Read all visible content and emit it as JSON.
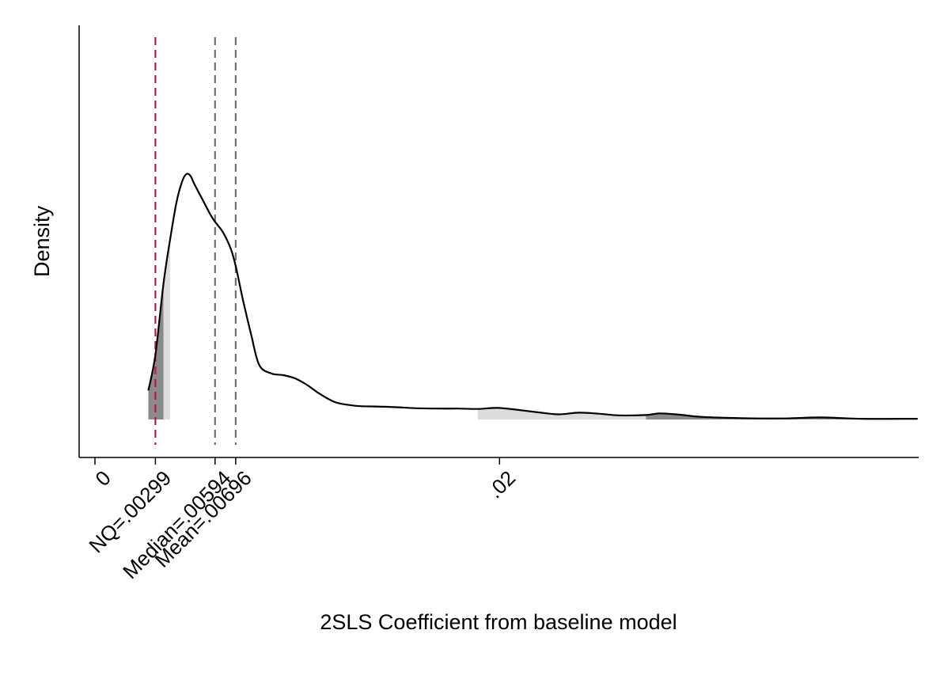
{
  "chart_data": {
    "type": "area",
    "xlabel": "2SLS Coefficient from baseline model",
    "ylabel": "Density",
    "xlim": [
      0,
      0.04075
    ],
    "ylim": [
      0,
      1
    ],
    "y_ticks_shown": false,
    "grid": false,
    "legend": "none",
    "x_ticks": [
      {
        "value": 0,
        "label": "0"
      },
      {
        "value": 0.00299,
        "label": "NQ=.00299"
      },
      {
        "value": 0.00594,
        "label": "Median=.00594"
      },
      {
        "value": 0.00696,
        "label": "Mean=.00696"
      },
      {
        "value": 0.02,
        "label": ".02"
      }
    ],
    "reference_lines": [
      {
        "name": "NQ",
        "x": 0.00299,
        "color": "#c0144a",
        "style": "dashed"
      },
      {
        "name": "Median",
        "x": 0.00594,
        "color": "#707070",
        "style": "dashed"
      },
      {
        "name": "Mean",
        "x": 0.00696,
        "color": "#707070",
        "style": "dashed"
      }
    ],
    "shaded_tails": [
      {
        "from": 0.00264,
        "to": 0.00339,
        "shade": "dark",
        "color": "#8a8a8a"
      },
      {
        "from": 0.00339,
        "to": 0.00372,
        "shade": "light",
        "color": "#dddddd"
      },
      {
        "from": 0.01892,
        "to": 0.02724,
        "shade": "light",
        "color": "#dddddd"
      },
      {
        "from": 0.02724,
        "to": 0.04067,
        "shade": "dark",
        "color": "#8a8a8a"
      }
    ],
    "density_curve": {
      "color": "#000000",
      "x": [
        0.00264,
        0.00299,
        0.00339,
        0.00372,
        0.00404,
        0.00432,
        0.00452,
        0.00472,
        0.00492,
        0.00532,
        0.00572,
        0.00594,
        0.00632,
        0.00672,
        0.00696,
        0.00732,
        0.00772,
        0.00812,
        0.00872,
        0.00932,
        0.00992,
        0.01052,
        0.01112,
        0.01192,
        0.01292,
        0.01392,
        0.01492,
        0.01592,
        0.01692,
        0.01792,
        0.01892,
        0.01992,
        0.02092,
        0.02192,
        0.02292,
        0.02392,
        0.02492,
        0.02592,
        0.02724,
        0.02792,
        0.02892,
        0.02992,
        0.03192,
        0.03392,
        0.03592,
        0.03792,
        0.04067
      ],
      "y": [
        0.085,
        0.19,
        0.4,
        0.53,
        0.64,
        0.7,
        0.72,
        0.715,
        0.69,
        0.645,
        0.6,
        0.58,
        0.55,
        0.5,
        0.45,
        0.35,
        0.25,
        0.16,
        0.135,
        0.13,
        0.12,
        0.1,
        0.075,
        0.05,
        0.04,
        0.038,
        0.036,
        0.033,
        0.032,
        0.032,
        0.031,
        0.034,
        0.028,
        0.021,
        0.015,
        0.02,
        0.017,
        0.012,
        0.013,
        0.018,
        0.014,
        0.008,
        0.004,
        0.003,
        0.006,
        0.002,
        0.002
      ]
    }
  }
}
